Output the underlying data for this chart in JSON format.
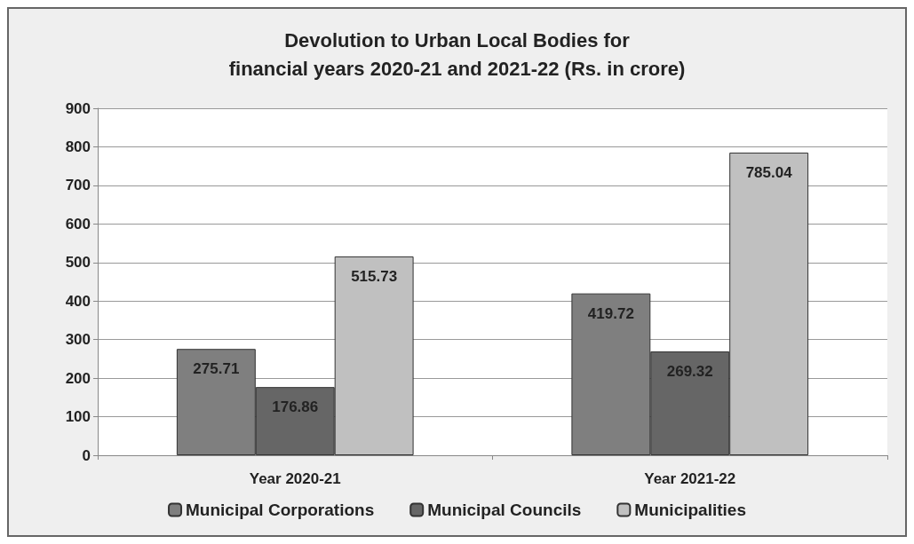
{
  "chart_data": {
    "type": "bar",
    "title": "Devolution to Urban Local Bodies for\nfinancial years 2020-21 and 2021-22 (Rs. in crore)",
    "categories": [
      "Year 2020-21",
      "Year 2021-22"
    ],
    "series": [
      {
        "name": "Municipal Corporations",
        "color": "#7f7f7f",
        "values": [
          275.71,
          419.72
        ]
      },
      {
        "name": "Municipal Councils",
        "color": "#666666",
        "values": [
          176.86,
          269.32
        ]
      },
      {
        "name": "Municipalities",
        "color": "#c0c0c0",
        "values": [
          515.73,
          785.04
        ]
      }
    ],
    "ylim": [
      0,
      900
    ],
    "yticks": [
      0,
      100,
      200,
      300,
      400,
      500,
      600,
      700,
      800,
      900
    ],
    "grid": "y",
    "legend": "bottom",
    "data_labels": true
  }
}
